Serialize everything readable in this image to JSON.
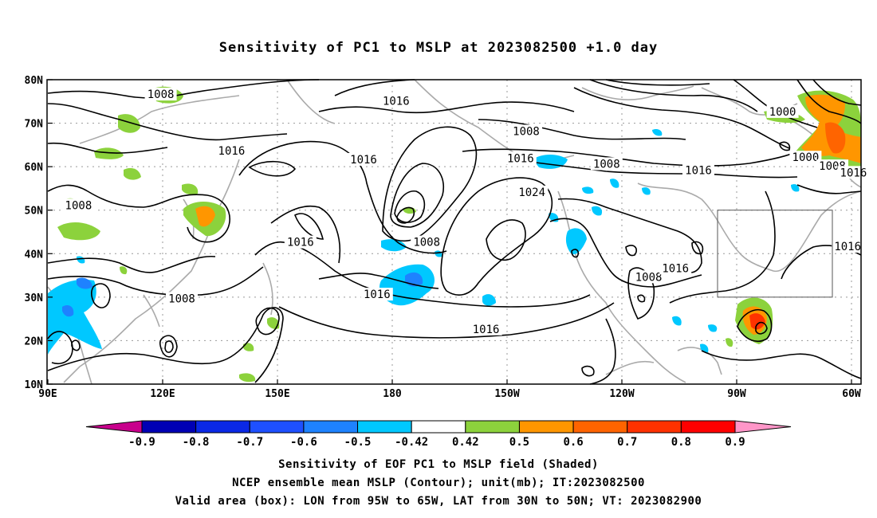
{
  "title": "Sensitivity of PC1 to MSLP at 2023082500 +1.0 day",
  "footer": {
    "line1": "Sensitivity of EOF PC1 to MSLP field (Shaded)",
    "line2": "NCEP ensemble mean MSLP (Contour); unit(mb); IT:2023082500",
    "line3": "Valid area (box): LON from 95W to 65W, LAT from 30N to 50N; VT: 2023082900"
  },
  "map": {
    "lon_range": [
      90,
      302.5
    ],
    "lat_range": [
      10,
      80
    ],
    "lon_ticks": [
      {
        "lon": 90,
        "label": "90E"
      },
      {
        "lon": 120,
        "label": "120E"
      },
      {
        "lon": 150,
        "label": "150E"
      },
      {
        "lon": 180,
        "label": "180"
      },
      {
        "lon": 210,
        "label": "150W"
      },
      {
        "lon": 240,
        "label": "120W"
      },
      {
        "lon": 270,
        "label": "90W"
      },
      {
        "lon": 300,
        "label": "60W"
      }
    ],
    "lat_ticks": [
      {
        "lat": 10,
        "label": "10N"
      },
      {
        "lat": 20,
        "label": "20N"
      },
      {
        "lat": 30,
        "label": "30N"
      },
      {
        "lat": 40,
        "label": "40N"
      },
      {
        "lat": 50,
        "label": "50N"
      },
      {
        "lat": 60,
        "label": "60N"
      },
      {
        "lat": 70,
        "label": "70N"
      },
      {
        "lat": 80,
        "label": "80N"
      }
    ],
    "grid": true,
    "valid_box": {
      "lon_min": 265,
      "lon_max": 295,
      "lat_min": 30,
      "lat_max": 50
    },
    "contour_labels": [
      {
        "text": "1008",
        "lon": 119.5,
        "lat": 76.5
      },
      {
        "text": "1016",
        "lon": 138,
        "lat": 63.5
      },
      {
        "text": "1008",
        "lon": 98,
        "lat": 51
      },
      {
        "text": "1016",
        "lon": 172.5,
        "lat": 61.5
      },
      {
        "text": "1016",
        "lon": 181,
        "lat": 75
      },
      {
        "text": "1008",
        "lon": 215,
        "lat": 68
      },
      {
        "text": "1016",
        "lon": 213.5,
        "lat": 61.8
      },
      {
        "text": "1024",
        "lon": 216.5,
        "lat": 54
      },
      {
        "text": "1008",
        "lon": 236,
        "lat": 60.5
      },
      {
        "text": "1016",
        "lon": 260,
        "lat": 59
      },
      {
        "text": "1000",
        "lon": 282,
        "lat": 72.5
      },
      {
        "text": "1000",
        "lon": 288,
        "lat": 62
      },
      {
        "text": "1008",
        "lon": 295,
        "lat": 60
      },
      {
        "text": "1016",
        "lon": 300.5,
        "lat": 58.5
      },
      {
        "text": "1016",
        "lon": 299,
        "lat": 41.5
      },
      {
        "text": "1016",
        "lon": 156,
        "lat": 42.5
      },
      {
        "text": "1008",
        "lon": 189,
        "lat": 42.5
      },
      {
        "text": "1016",
        "lon": 176,
        "lat": 30.5
      },
      {
        "text": "1008",
        "lon": 125,
        "lat": 29.5
      },
      {
        "text": "1016",
        "lon": 204.5,
        "lat": 22.5
      },
      {
        "text": "1008",
        "lon": 247,
        "lat": 34.5
      },
      {
        "text": "1016",
        "lon": 254,
        "lat": 36.5
      }
    ]
  },
  "colorbar": {
    "levels": [
      "-0.9",
      "-0.8",
      "-0.7",
      "-0.6",
      "-0.5",
      "-0.42",
      "0.42",
      "0.5",
      "0.6",
      "0.7",
      "0.8",
      "0.9"
    ],
    "colors": [
      "#c8008c",
      "#0000b4",
      "#0a28e6",
      "#1e50ff",
      "#1e82ff",
      "#00c8ff",
      "#ffffff",
      "#8cd23c",
      "#ff9600",
      "#ff6400",
      "#ff3200",
      "#ff0000",
      "#ff96c8"
    ]
  },
  "colors": {
    "coastline": "#aaaaaa",
    "contour": "#000000",
    "grid": "#999999",
    "pos_low": "#8cd23c",
    "pos_mid": "#ff9600",
    "pos_high": "#ff3200",
    "neg_low": "#00c8ff",
    "neg_mid": "#1e82ff"
  }
}
